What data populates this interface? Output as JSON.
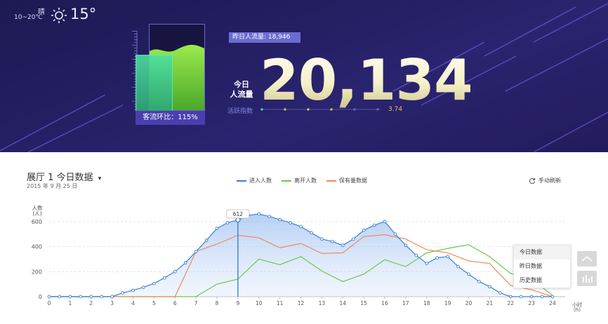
{
  "weather": {
    "condition": "晴",
    "range": "10~20℃",
    "icon": "sun-icon",
    "temperature": "15°"
  },
  "gauge": {
    "caption": "客流环比：115%"
  },
  "stats": {
    "yesterday": "昨日人流量: 18,946",
    "today_label_line1": "今日",
    "today_label_line2": "人流量",
    "today_value": "20,134",
    "active_label": "活跃指数",
    "active_value": "3.74"
  },
  "panel": {
    "title": "展厅 1 今日数据",
    "caret": "▾",
    "date": "2015 年 9 月 25 日",
    "refresh_label": "手动刷新",
    "tooltip": "612",
    "menu": [
      "今日数据",
      "昨日数据",
      "历史数据"
    ]
  },
  "colors": {
    "banner": "#231e62",
    "enter": "#3a7fd6",
    "leave": "#6cc94a",
    "retain": "#ef8a5a"
  },
  "chart_data": {
    "type": "line",
    "x": [
      0,
      1,
      2,
      3,
      4,
      5,
      6,
      7,
      8,
      9,
      10,
      11,
      12,
      13,
      14,
      15,
      16,
      17,
      18,
      19,
      20,
      21,
      22,
      23,
      24
    ],
    "xlabel": "小时\n(h)",
    "ylabel": "人数\n(人)",
    "ylim": [
      0,
      700
    ],
    "yticks": [
      0,
      200,
      400,
      600
    ],
    "grid": true,
    "legend_position": "top-center",
    "series": [
      {
        "name": "进入人数",
        "color": "#3a7fd6",
        "points": [
          [
            0,
            0
          ],
          [
            0.5,
            0
          ],
          [
            1,
            0
          ],
          [
            1.5,
            0
          ],
          [
            2,
            0
          ],
          [
            2.5,
            0
          ],
          [
            3,
            0
          ],
          [
            3.5,
            30
          ],
          [
            4,
            50
          ],
          [
            4.5,
            75
          ],
          [
            5,
            105
          ],
          [
            5.5,
            150
          ],
          [
            6,
            200
          ],
          [
            6.5,
            270
          ],
          [
            7,
            360
          ],
          [
            7.5,
            450
          ],
          [
            8,
            545
          ],
          [
            8.5,
            590
          ],
          [
            9,
            612
          ],
          [
            9.5,
            650
          ],
          [
            10,
            660
          ],
          [
            10.5,
            640
          ],
          [
            11,
            615
          ],
          [
            11.5,
            590
          ],
          [
            12,
            560
          ],
          [
            12.5,
            510
          ],
          [
            13,
            460
          ],
          [
            13.5,
            440
          ],
          [
            14,
            410
          ],
          [
            14.5,
            460
          ],
          [
            15,
            530
          ],
          [
            15.5,
            570
          ],
          [
            16,
            600
          ],
          [
            16.5,
            500
          ],
          [
            17,
            410
          ],
          [
            17.5,
            330
          ],
          [
            18,
            265
          ],
          [
            18.5,
            310
          ],
          [
            19,
            320
          ],
          [
            19.5,
            240
          ],
          [
            20,
            180
          ],
          [
            20.5,
            120
          ],
          [
            21,
            80
          ],
          [
            21.5,
            30
          ],
          [
            22,
            0
          ],
          [
            22.5,
            0
          ],
          [
            23,
            0
          ],
          [
            23.5,
            0
          ],
          [
            24,
            0
          ]
        ]
      },
      {
        "name": "离开人数",
        "color": "#6cc94a",
        "points": [
          [
            0,
            0
          ],
          [
            1,
            0
          ],
          [
            2,
            0
          ],
          [
            3,
            0
          ],
          [
            4,
            0
          ],
          [
            5,
            0
          ],
          [
            6,
            0
          ],
          [
            7,
            0
          ],
          [
            8,
            100
          ],
          [
            9,
            140
          ],
          [
            10,
            300
          ],
          [
            11,
            255
          ],
          [
            12,
            320
          ],
          [
            13,
            205
          ],
          [
            14,
            120
          ],
          [
            15,
            180
          ],
          [
            16,
            295
          ],
          [
            17,
            240
          ],
          [
            18,
            350
          ],
          [
            19,
            385
          ],
          [
            20,
            415
          ],
          [
            21,
            320
          ],
          [
            22,
            185
          ],
          [
            23,
            140
          ],
          [
            24,
            10
          ]
        ]
      },
      {
        "name": "保有量数据",
        "color": "#ef8a5a",
        "points": [
          [
            0,
            0
          ],
          [
            1,
            0
          ],
          [
            2,
            0
          ],
          [
            3,
            0
          ],
          [
            4,
            0
          ],
          [
            5,
            0
          ],
          [
            6,
            0
          ],
          [
            7,
            360
          ],
          [
            8,
            420
          ],
          [
            9,
            490
          ],
          [
            10,
            470
          ],
          [
            11,
            390
          ],
          [
            12,
            425
          ],
          [
            13,
            345
          ],
          [
            14,
            350
          ],
          [
            15,
            480
          ],
          [
            16,
            495
          ],
          [
            17,
            460
          ],
          [
            18,
            375
          ],
          [
            19,
            350
          ],
          [
            20,
            285
          ],
          [
            21,
            265
          ],
          [
            22,
            90
          ],
          [
            23,
            55
          ],
          [
            24,
            0
          ]
        ]
      }
    ],
    "marker": {
      "x": 9,
      "y": 612
    }
  }
}
